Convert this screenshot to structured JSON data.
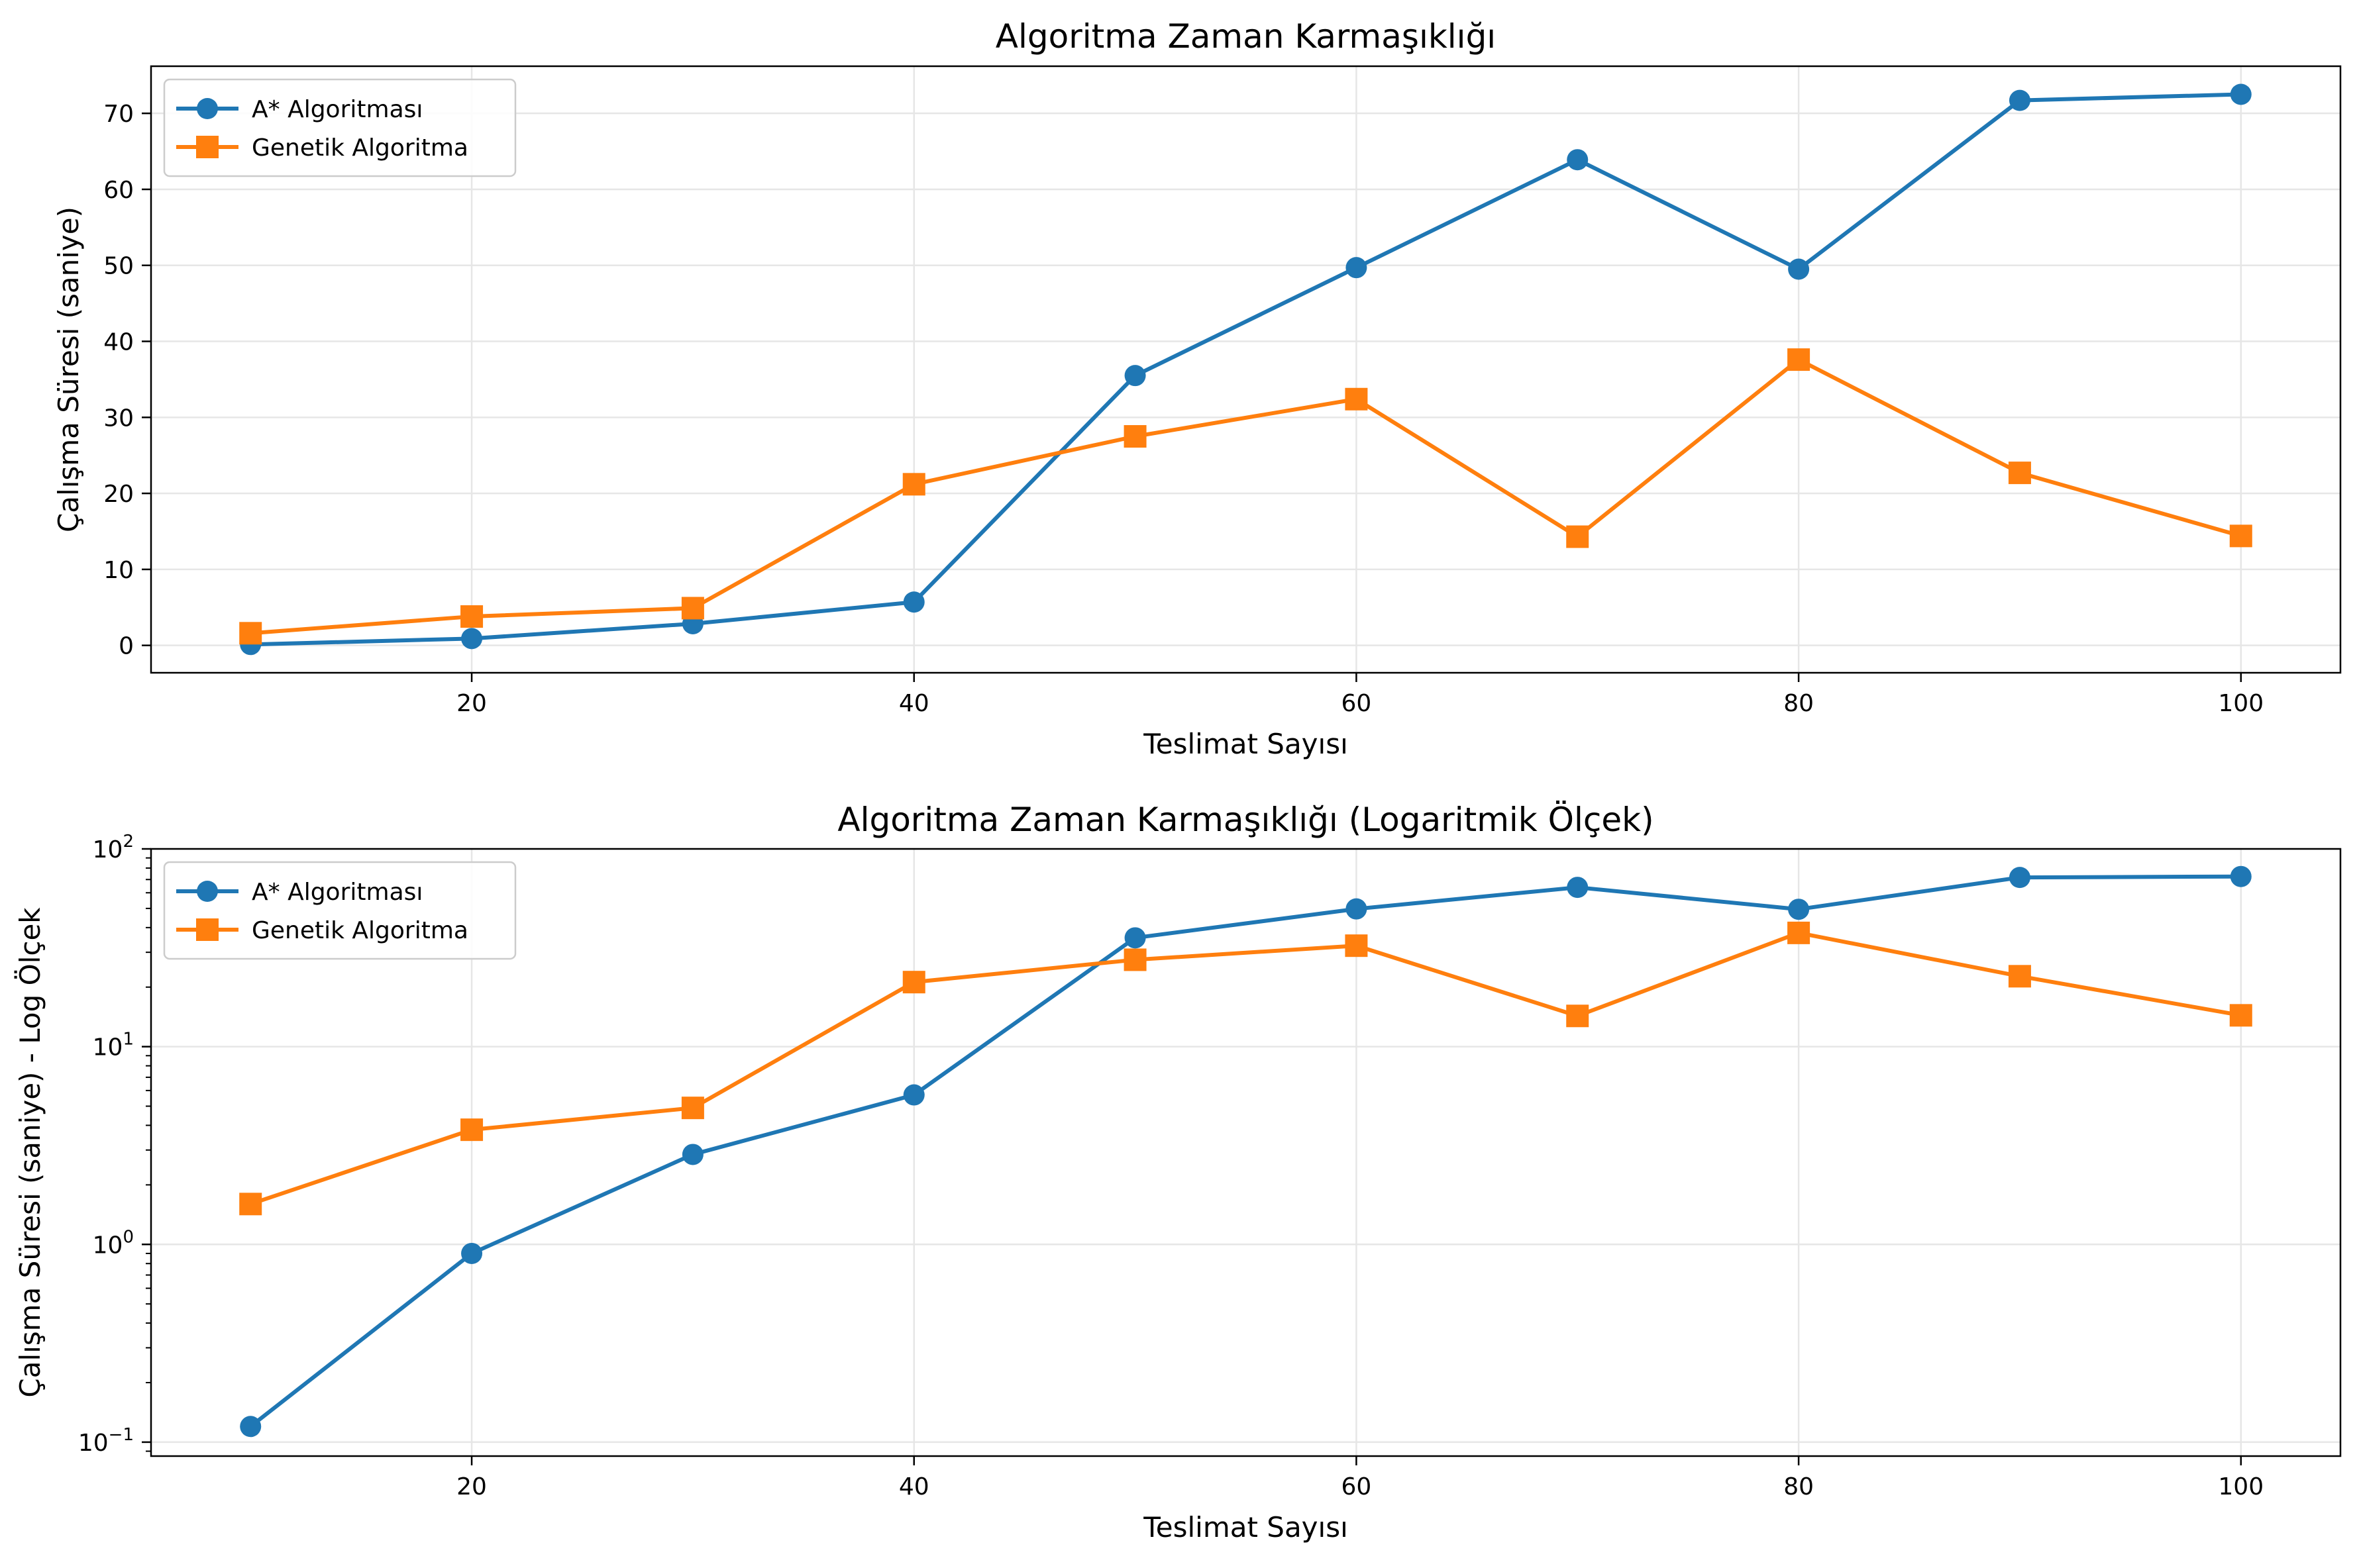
{
  "chart_data": [
    {
      "type": "line",
      "title": "Algoritma Zaman Karmaşıklığı",
      "xlabel": "Teslimat Sayısı",
      "ylabel": "Çalışma Süresi (saniye)",
      "x": [
        10,
        20,
        30,
        40,
        50,
        60,
        70,
        80,
        90,
        100
      ],
      "xlim": [
        5.5,
        104.5
      ],
      "ylim": [
        -3.6,
        76.2
      ],
      "yscale": "linear",
      "xticks": [
        "20",
        "40",
        "60",
        "80",
        "100"
      ],
      "yticks": [
        "0",
        "10",
        "20",
        "30",
        "40",
        "50",
        "60",
        "70"
      ],
      "grid": true,
      "legend_position": "upper-left",
      "series": [
        {
          "name": "A* Algoritması",
          "color": "#1f77b4",
          "marker": "circle",
          "values": [
            0.12,
            0.9,
            2.85,
            5.7,
            35.5,
            49.7,
            63.9,
            49.5,
            71.7,
            72.5
          ]
        },
        {
          "name": "Genetik Algoritma",
          "color": "#ff7f0e",
          "marker": "square",
          "values": [
            1.6,
            3.8,
            4.9,
            21.2,
            27.5,
            32.4,
            14.3,
            37.6,
            22.7,
            14.4
          ]
        }
      ]
    },
    {
      "type": "line",
      "title": "Algoritma Zaman Karmaşıklığı (Logaritmik Ölçek)",
      "xlabel": "Teslimat Sayısı",
      "ylabel": "Çalışma Süresi (saniye) - Log Ölçek",
      "x": [
        10,
        20,
        30,
        40,
        50,
        60,
        70,
        80,
        90,
        100
      ],
      "xlim": [
        5.5,
        104.5
      ],
      "ylim": [
        0.085,
        100
      ],
      "yscale": "log",
      "xticks": [
        "20",
        "40",
        "60",
        "80",
        "100"
      ],
      "yticks": [
        {
          "base": "10",
          "exp": "−1"
        },
        {
          "base": "10",
          "exp": "0"
        },
        {
          "base": "10",
          "exp": "1"
        },
        {
          "base": "10",
          "exp": "2"
        }
      ],
      "grid": true,
      "legend_position": "upper-left",
      "series": [
        {
          "name": "A* Algoritması",
          "color": "#1f77b4",
          "marker": "circle",
          "values": [
            0.12,
            0.9,
            2.85,
            5.7,
            35.5,
            49.7,
            63.9,
            49.5,
            71.7,
            72.5
          ]
        },
        {
          "name": "Genetik Algoritma",
          "color": "#ff7f0e",
          "marker": "square",
          "values": [
            1.6,
            3.8,
            4.9,
            21.2,
            27.5,
            32.4,
            14.3,
            37.6,
            22.7,
            14.4
          ]
        }
      ]
    }
  ]
}
